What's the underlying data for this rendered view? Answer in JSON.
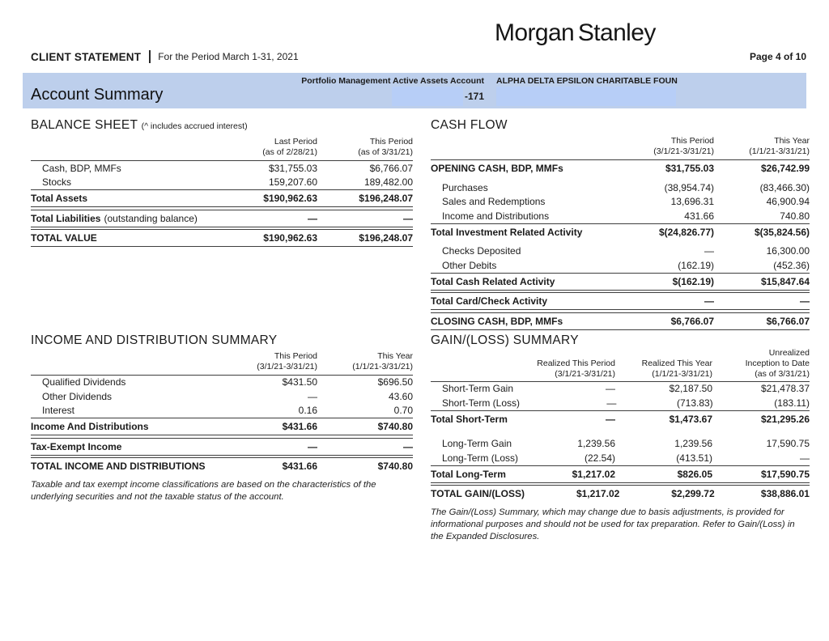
{
  "header": {
    "brand": "Morgan Stanley",
    "statement_label": "CLIENT STATEMENT",
    "period_label": "For the Period March 1-31, 2021",
    "page_label": "Page 4 of 10"
  },
  "banner": {
    "title": "Account Summary",
    "account_type_label": "Portfolio Management Active Assets Account",
    "account_suffix": "-171",
    "client_name": "ALPHA DELTA EPSILON CHARITABLE FOUN",
    "colors": {
      "banner_bg": "#bdcfec",
      "redaction_bg": "#b7cef7"
    }
  },
  "balance_sheet": {
    "title": "BALANCE SHEET",
    "title_note": "(^  includes accrued interest)",
    "columns": [
      {
        "line1": "Last Period",
        "line2": "(as of 2/28/21)"
      },
      {
        "line1": "This Period",
        "line2": "(as of 3/31/21)"
      }
    ],
    "rows": [
      {
        "label": "Cash, BDP, MMFs",
        "values": [
          "$31,755.03",
          "$6,766.07"
        ]
      },
      {
        "label": "Stocks",
        "values": [
          "159,207.60",
          "189,482.00"
        ]
      },
      {
        "label": "Total Assets",
        "values": [
          "$190,962.63",
          "$196,248.07"
        ]
      },
      {
        "label": "Total Liabilities",
        "note": "(outstanding balance)",
        "values": [
          "—",
          "—"
        ]
      },
      {
        "label": "TOTAL VALUE",
        "values": [
          "$190,962.63",
          "$196,248.07"
        ]
      }
    ]
  },
  "cash_flow": {
    "title": "CASH FLOW",
    "columns": [
      {
        "line1": "This Period",
        "line2": "(3/1/21-3/31/21)"
      },
      {
        "line1": "This Year",
        "line2": "(1/1/21-3/31/21)"
      }
    ],
    "rows": [
      {
        "label": "OPENING CASH, BDP, MMFs",
        "values": [
          "$31,755.03",
          "$26,742.99"
        ]
      },
      {
        "label": "Purchases",
        "values": [
          "(38,954.74)",
          "(83,466.30)"
        ]
      },
      {
        "label": "Sales and Redemptions",
        "values": [
          "13,696.31",
          "46,900.94"
        ]
      },
      {
        "label": "Income and Distributions",
        "values": [
          "431.66",
          "740.80"
        ]
      },
      {
        "label": "Total Investment Related Activity",
        "values": [
          "$(24,826.77)",
          "$(35,824.56)"
        ]
      },
      {
        "label": "Checks Deposited",
        "values": [
          "—",
          "16,300.00"
        ]
      },
      {
        "label": "Other Debits",
        "values": [
          "(162.19)",
          "(452.36)"
        ]
      },
      {
        "label": "Total Cash Related Activity",
        "values": [
          "$(162.19)",
          "$15,847.64"
        ]
      },
      {
        "label": "Total Card/Check Activity",
        "values": [
          "—",
          "—"
        ]
      },
      {
        "label": "CLOSING CASH, BDP, MMFs",
        "values": [
          "$6,766.07",
          "$6,766.07"
        ]
      }
    ]
  },
  "income_summary": {
    "title": "INCOME AND DISTRIBUTION SUMMARY",
    "columns": [
      {
        "line1": "This Period",
        "line2": "(3/1/21-3/31/21)"
      },
      {
        "line1": "This Year",
        "line2": "(1/1/21-3/31/21)"
      }
    ],
    "rows": [
      {
        "label": "Qualified Dividends",
        "values": [
          "$431.50",
          "$696.50"
        ]
      },
      {
        "label": "Other Dividends",
        "values": [
          "—",
          "43.60"
        ]
      },
      {
        "label": "Interest",
        "values": [
          "0.16",
          "0.70"
        ]
      },
      {
        "label": "Income And Distributions",
        "values": [
          "$431.66",
          "$740.80"
        ]
      },
      {
        "label": "Tax-Exempt Income",
        "values": [
          "—",
          "—"
        ]
      },
      {
        "label": "TOTAL INCOME AND DISTRIBUTIONS",
        "values": [
          "$431.66",
          "$740.80"
        ]
      }
    ],
    "footnote": "Taxable and tax exempt income classifications are based on the characteristics of the underlying securities and not the taxable status of the account."
  },
  "gain_loss": {
    "title": "GAIN/(LOSS) SUMMARY",
    "columns": [
      {
        "line1": "Realized This Period",
        "line2": "(3/1/21-3/31/21)"
      },
      {
        "line1": "Realized This Year",
        "line2": "(1/1/21-3/31/21)"
      },
      {
        "top": "Unrealized",
        "line1": "Inception to Date",
        "line2": "(as of 3/31/21)"
      }
    ],
    "rows": [
      {
        "label": "Short-Term Gain",
        "values": [
          "—",
          "$2,187.50",
          "$21,478.37"
        ]
      },
      {
        "label": "Short-Term (Loss)",
        "values": [
          "—",
          "(713.83)",
          "(183.11)"
        ]
      },
      {
        "label": "Total Short-Term",
        "values": [
          "—",
          "$1,473.67",
          "$21,295.26"
        ]
      },
      {
        "label": "Long-Term Gain",
        "values": [
          "1,239.56",
          "1,239.56",
          "17,590.75"
        ]
      },
      {
        "label": "Long-Term (Loss)",
        "values": [
          "(22.54)",
          "(413.51)",
          "—"
        ]
      },
      {
        "label": "Total Long-Term",
        "values": [
          "$1,217.02",
          "$826.05",
          "$17,590.75"
        ]
      },
      {
        "label": "TOTAL GAIN/(LOSS)",
        "values": [
          "$1,217.02",
          "$2,299.72",
          "$38,886.01"
        ]
      }
    ],
    "footnote": "The Gain/(Loss) Summary, which may change due to basis adjustments, is provided for informational purposes and should not be used for tax preparation.  Refer to Gain/(Loss) in the Expanded Disclosures."
  }
}
